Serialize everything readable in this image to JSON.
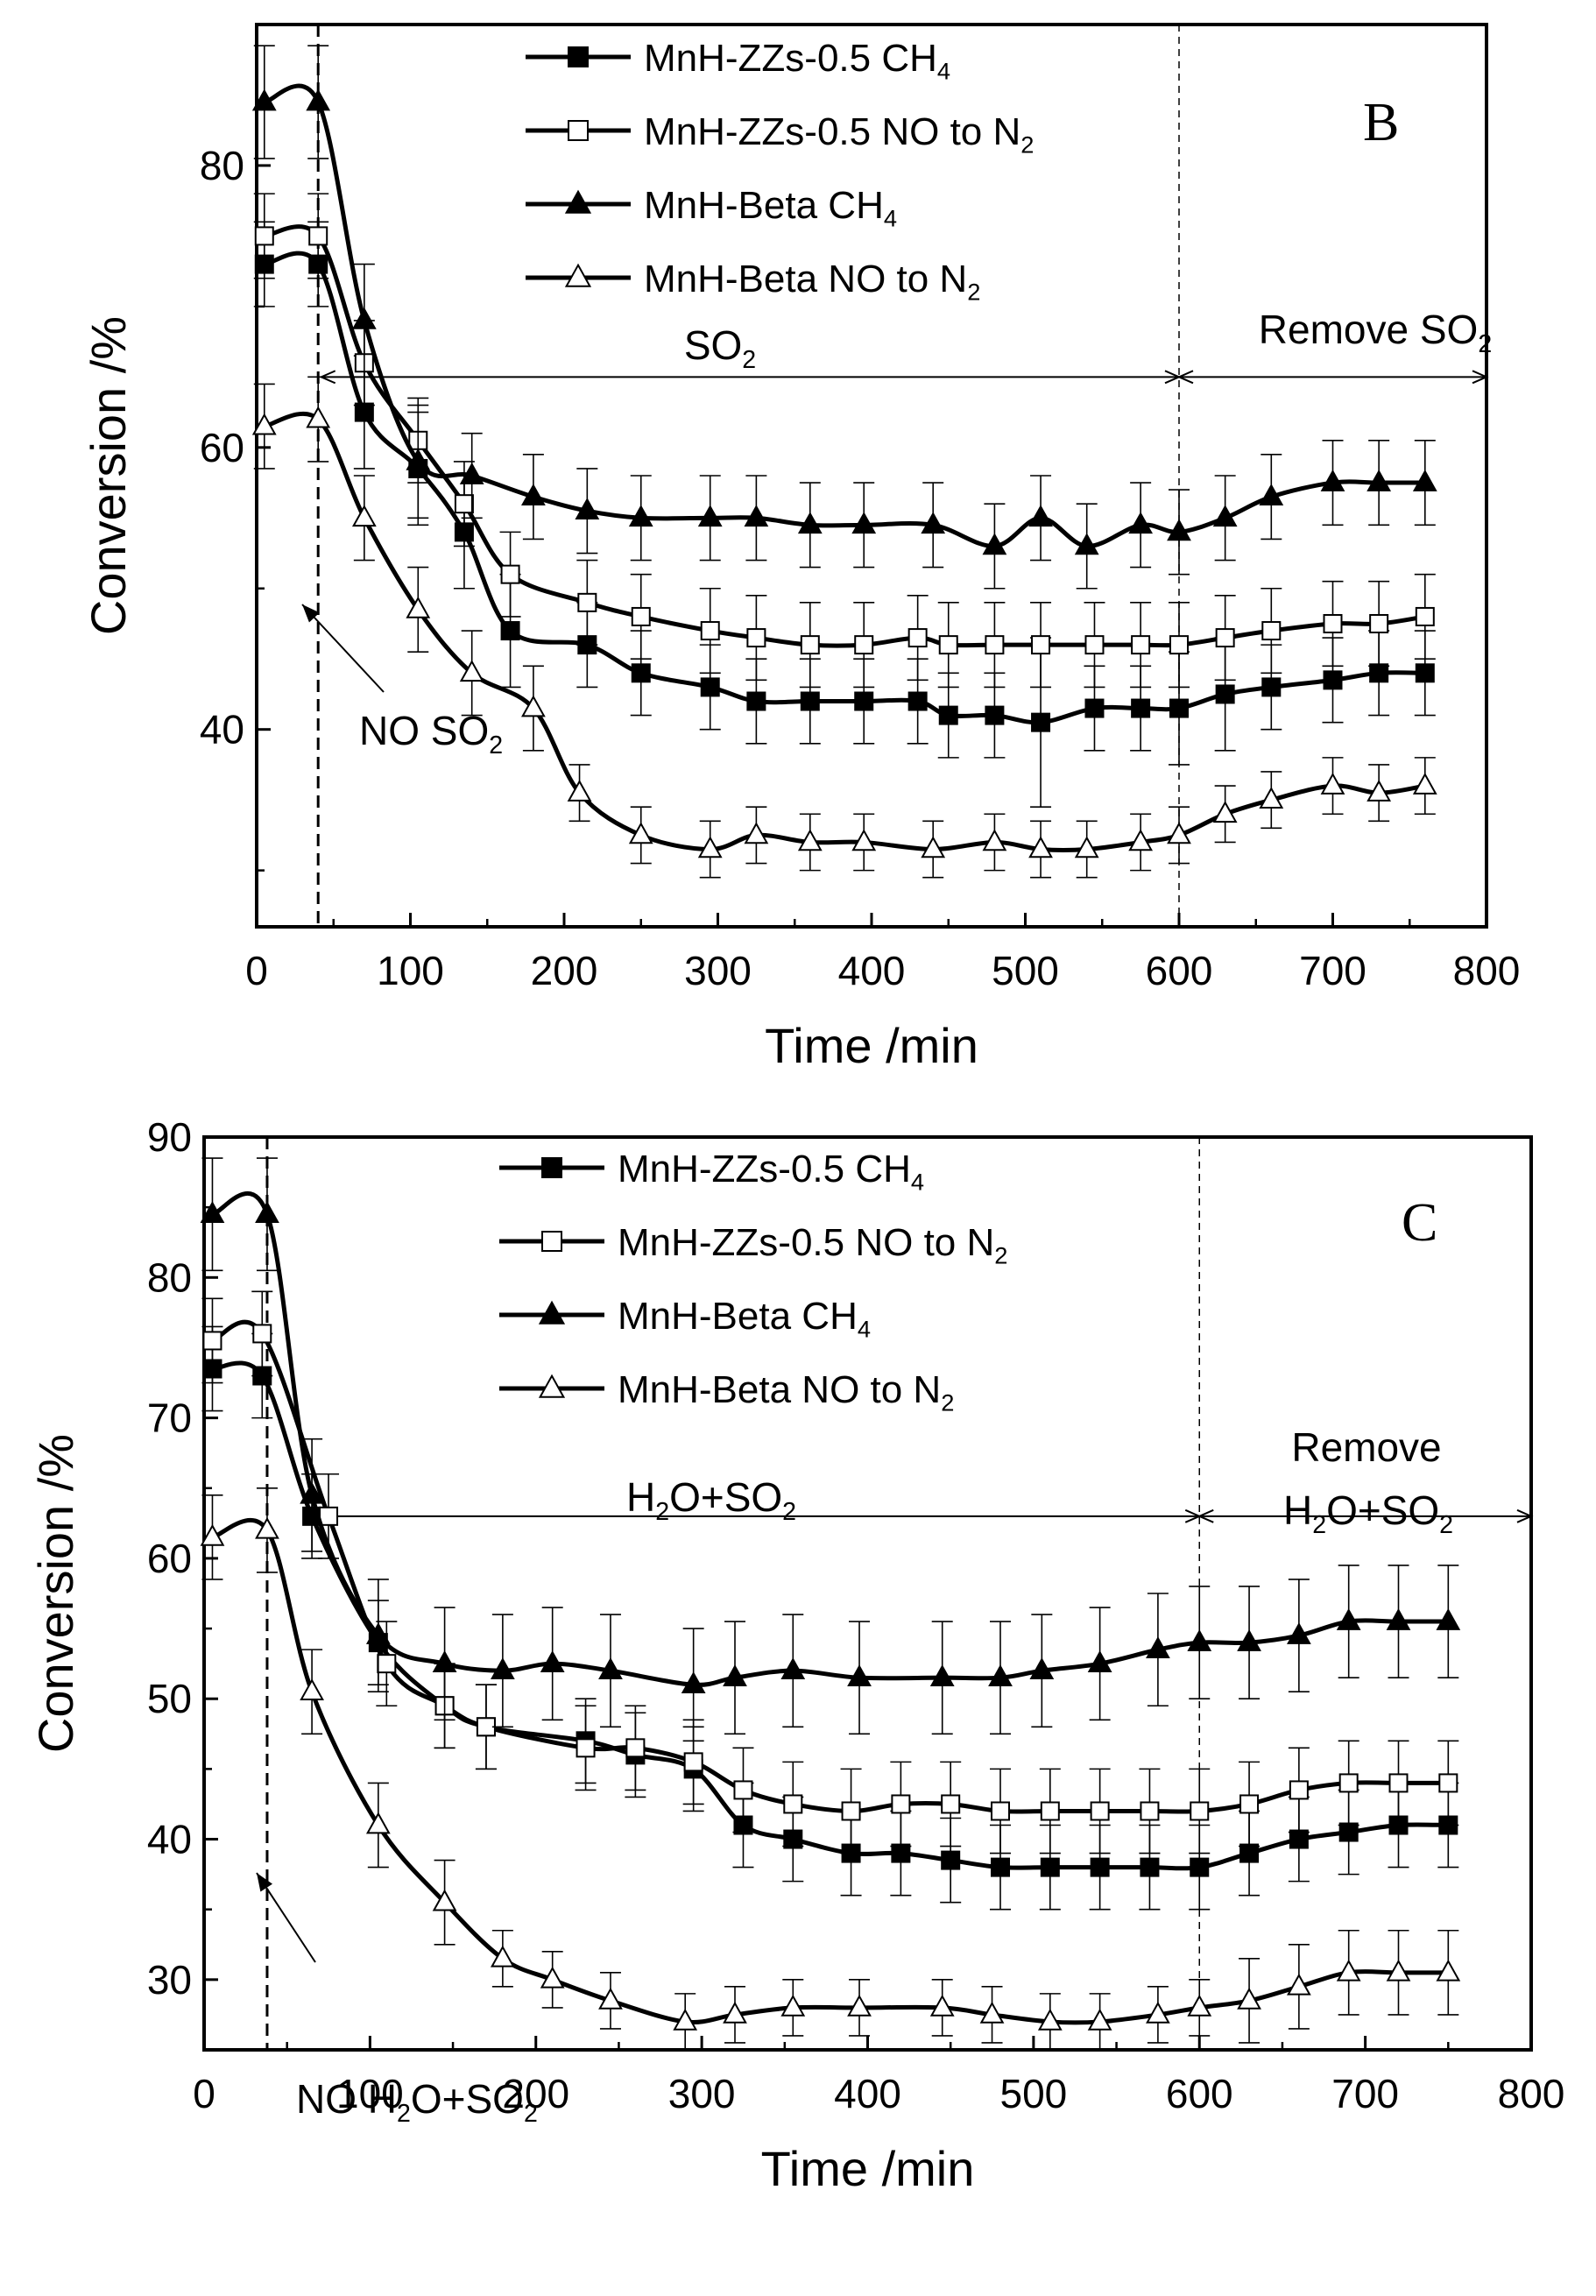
{
  "chart_data": [
    {
      "panel_label": "B",
      "type": "line",
      "xlabel": "Time /min",
      "ylabel": "Conversion /%",
      "xlim": [
        0,
        800
      ],
      "ylim": [
        26,
        90
      ],
      "xticks": [
        0,
        100,
        200,
        300,
        400,
        500,
        600,
        700,
        800
      ],
      "yticks": [
        40,
        60,
        80
      ],
      "legend": [
        {
          "label": "MnH-ZZs-0.5  CH",
          "sub": "4",
          "marker": "square-filled"
        },
        {
          "label": "MnH-ZZs-0.5  NO to N",
          "sub": "2",
          "marker": "square-open"
        },
        {
          "label": "MnH-Beta    CH",
          "sub": "4",
          "marker": "triangle-filled"
        },
        {
          "label": "MnH-Beta    NO to N",
          "sub": "2",
          "marker": "triangle-open"
        }
      ],
      "dividers": [
        40,
        600
      ],
      "annotations": {
        "mid": {
          "text": "SO",
          "sub": "2"
        },
        "right": {
          "text": "Remove SO",
          "sub": "2"
        },
        "arrow": {
          "text": "NO SO",
          "sub": "2"
        }
      },
      "series": [
        {
          "name": "MnH-ZZs-0.5 CH4",
          "marker": "square-filled",
          "x": [
            5,
            40,
            70,
            105,
            135,
            165,
            215,
            250,
            295,
            325,
            360,
            395,
            430,
            450,
            480,
            510,
            545,
            575,
            600,
            630,
            660,
            700,
            730,
            760
          ],
          "y": [
            73,
            73,
            62.5,
            58.5,
            54,
            47,
            46,
            44,
            43,
            42,
            42,
            42,
            42,
            41,
            41,
            40.5,
            41.5,
            41.5,
            41.5,
            42.5,
            43,
            43.5,
            44,
            44
          ],
          "err": [
            3,
            3,
            4,
            4,
            4,
            4,
            3,
            3,
            3,
            3,
            3,
            3,
            3,
            3,
            3,
            6,
            3,
            3,
            4,
            4,
            3,
            3,
            3,
            3
          ]
        },
        {
          "name": "MnH-ZZs-0.5 NO to N2",
          "marker": "square-open",
          "x": [
            5,
            40,
            70,
            105,
            135,
            165,
            215,
            250,
            295,
            325,
            360,
            395,
            430,
            450,
            480,
            510,
            545,
            575,
            600,
            630,
            660,
            700,
            730,
            760
          ],
          "y": [
            75,
            75,
            66,
            60.5,
            56,
            51,
            49,
            48,
            47,
            46.5,
            46,
            46,
            46.5,
            46,
            46,
            46,
            46,
            46,
            46,
            46.5,
            47,
            47.5,
            47.5,
            48
          ],
          "err": [
            3,
            3,
            3,
            3,
            3,
            3,
            3,
            3,
            3,
            3,
            3,
            3,
            3,
            3,
            3,
            3,
            3,
            3,
            3,
            3,
            3,
            3,
            3,
            3
          ]
        },
        {
          "name": "MnH-Beta CH4",
          "marker": "triangle-filled",
          "x": [
            5,
            40,
            70,
            105,
            140,
            180,
            215,
            250,
            295,
            325,
            360,
            395,
            440,
            480,
            510,
            540,
            575,
            600,
            630,
            660,
            700,
            730,
            760
          ],
          "y": [
            84.5,
            84.5,
            69,
            59,
            58,
            56.5,
            55.5,
            55,
            55,
            55,
            54.5,
            54.5,
            54.5,
            53,
            55,
            53,
            54.5,
            54,
            55,
            56.5,
            57.5,
            57.5,
            57.5
          ],
          "err": [
            4,
            4,
            4,
            4,
            3,
            3,
            3,
            3,
            3,
            3,
            3,
            3,
            3,
            3,
            3,
            3,
            3,
            3,
            3,
            3,
            3,
            3,
            3
          ]
        },
        {
          "name": "MnH-Beta NO to N2",
          "marker": "triangle-open",
          "x": [
            5,
            40,
            70,
            105,
            140,
            180,
            210,
            250,
            295,
            325,
            360,
            395,
            440,
            480,
            510,
            540,
            575,
            600,
            630,
            660,
            700,
            730,
            760
          ],
          "y": [
            61.5,
            62,
            55,
            48.5,
            44,
            41.5,
            35.5,
            32.5,
            31.5,
            32.5,
            32,
            32,
            31.5,
            32,
            31.5,
            31.5,
            32,
            32.5,
            34,
            35,
            36,
            35.5,
            36
          ],
          "err": [
            3,
            3,
            3,
            3,
            3,
            3,
            2,
            2,
            2,
            2,
            2,
            2,
            2,
            2,
            2,
            2,
            2,
            2,
            2,
            2,
            2,
            2,
            2
          ]
        }
      ]
    },
    {
      "panel_label": "C",
      "type": "line",
      "xlabel": "Time /min",
      "ylabel": "Conversion /%",
      "xlim": [
        0,
        800
      ],
      "ylim": [
        25,
        90
      ],
      "xticks": [
        0,
        100,
        200,
        300,
        400,
        500,
        600,
        700,
        800
      ],
      "yticks": [
        30,
        40,
        50,
        60,
        70,
        80,
        90
      ],
      "legend": [
        {
          "label": "MnH-ZZs-0.5 CH",
          "sub": "4",
          "marker": "square-filled"
        },
        {
          "label": "MnH-ZZs-0.5 NO to N",
          "sub": "2",
          "marker": "square-open"
        },
        {
          "label": "MnH-Beta    CH",
          "sub": "4",
          "marker": "triangle-filled"
        },
        {
          "label": "MnH-Beta    NO to N",
          "sub": "2",
          "marker": "triangle-open"
        }
      ],
      "dividers": [
        38,
        600
      ],
      "annotations": {
        "mid": {
          "text": "H",
          "sub": "2",
          "text2": "O+SO",
          "sub2": "2"
        },
        "right_top": "Remove",
        "right": {
          "text": "H",
          "sub": "2",
          "text2": "O+SO",
          "sub2": "2"
        },
        "arrow": {
          "text": "NO H",
          "sub": "2",
          "text2": "O+SO",
          "sub2": "2"
        }
      },
      "series": [
        {
          "name": "MnH-ZZs-0.5 CH4",
          "marker": "square-filled",
          "x": [
            5,
            35,
            65,
            105,
            145,
            170,
            230,
            260,
            295,
            325,
            355,
            390,
            420,
            450,
            480,
            510,
            540,
            570,
            600,
            630,
            660,
            690,
            720,
            750
          ],
          "y": [
            73.5,
            73,
            63,
            54,
            49.5,
            48,
            47,
            46,
            45,
            41,
            40,
            39,
            39,
            38.5,
            38,
            38,
            38,
            38,
            38,
            39,
            40,
            40.5,
            41,
            41
          ],
          "err": [
            3,
            3,
            3,
            3,
            3,
            3,
            3,
            3,
            3,
            3,
            3,
            3,
            3,
            3,
            3,
            3,
            3,
            3,
            3,
            3,
            3,
            3,
            3,
            3
          ]
        },
        {
          "name": "MnH-ZZs-0.5 NO to N2",
          "marker": "square-open",
          "x": [
            5,
            35,
            75,
            110,
            145,
            170,
            230,
            260,
            295,
            325,
            355,
            390,
            420,
            450,
            480,
            510,
            540,
            570,
            600,
            630,
            660,
            690,
            720,
            750
          ],
          "y": [
            75.5,
            76,
            63,
            52.5,
            49.5,
            48,
            46.5,
            46.5,
            45.5,
            43.5,
            42.5,
            42,
            42.5,
            42.5,
            42,
            42,
            42,
            42,
            42,
            42.5,
            43.5,
            44,
            44,
            44
          ],
          "err": [
            3,
            3,
            3,
            3,
            3,
            3,
            3,
            3,
            3,
            3,
            3,
            3,
            3,
            3,
            3,
            3,
            3,
            3,
            3,
            3,
            3,
            3,
            3,
            3
          ]
        },
        {
          "name": "MnH-Beta CH4",
          "marker": "triangle-filled",
          "x": [
            5,
            38,
            65,
            105,
            145,
            180,
            210,
            245,
            295,
            320,
            355,
            395,
            445,
            480,
            505,
            540,
            575,
            600,
            630,
            660,
            690,
            720,
            750
          ],
          "y": [
            84.5,
            84.5,
            64.5,
            54.5,
            52.5,
            52,
            52.5,
            52,
            51,
            51.5,
            52,
            51.5,
            51.5,
            51.5,
            52,
            52.5,
            53.5,
            54,
            54,
            54.5,
            55.5,
            55.5,
            55.5
          ],
          "err": [
            4,
            4,
            4,
            4,
            4,
            4,
            4,
            4,
            4,
            4,
            4,
            4,
            4,
            4,
            4,
            4,
            4,
            4,
            4,
            4,
            4,
            4,
            4
          ]
        },
        {
          "name": "MnH-Beta NO to N2",
          "marker": "triangle-open",
          "x": [
            5,
            38,
            65,
            105,
            145,
            180,
            210,
            245,
            290,
            320,
            355,
            395,
            445,
            475,
            510,
            540,
            575,
            600,
            630,
            660,
            690,
            720,
            750
          ],
          "y": [
            61.5,
            62,
            50.5,
            41,
            35.5,
            31.5,
            30,
            28.5,
            27,
            27.5,
            28,
            28,
            28,
            27.5,
            27,
            27,
            27.5,
            28,
            28.5,
            29.5,
            30.5,
            30.5,
            30.5
          ],
          "err": [
            3,
            3,
            3,
            3,
            3,
            2,
            2,
            2,
            2,
            2,
            2,
            2,
            2,
            2,
            2,
            2,
            2,
            2,
            3,
            3,
            3,
            3,
            3
          ]
        }
      ]
    }
  ]
}
